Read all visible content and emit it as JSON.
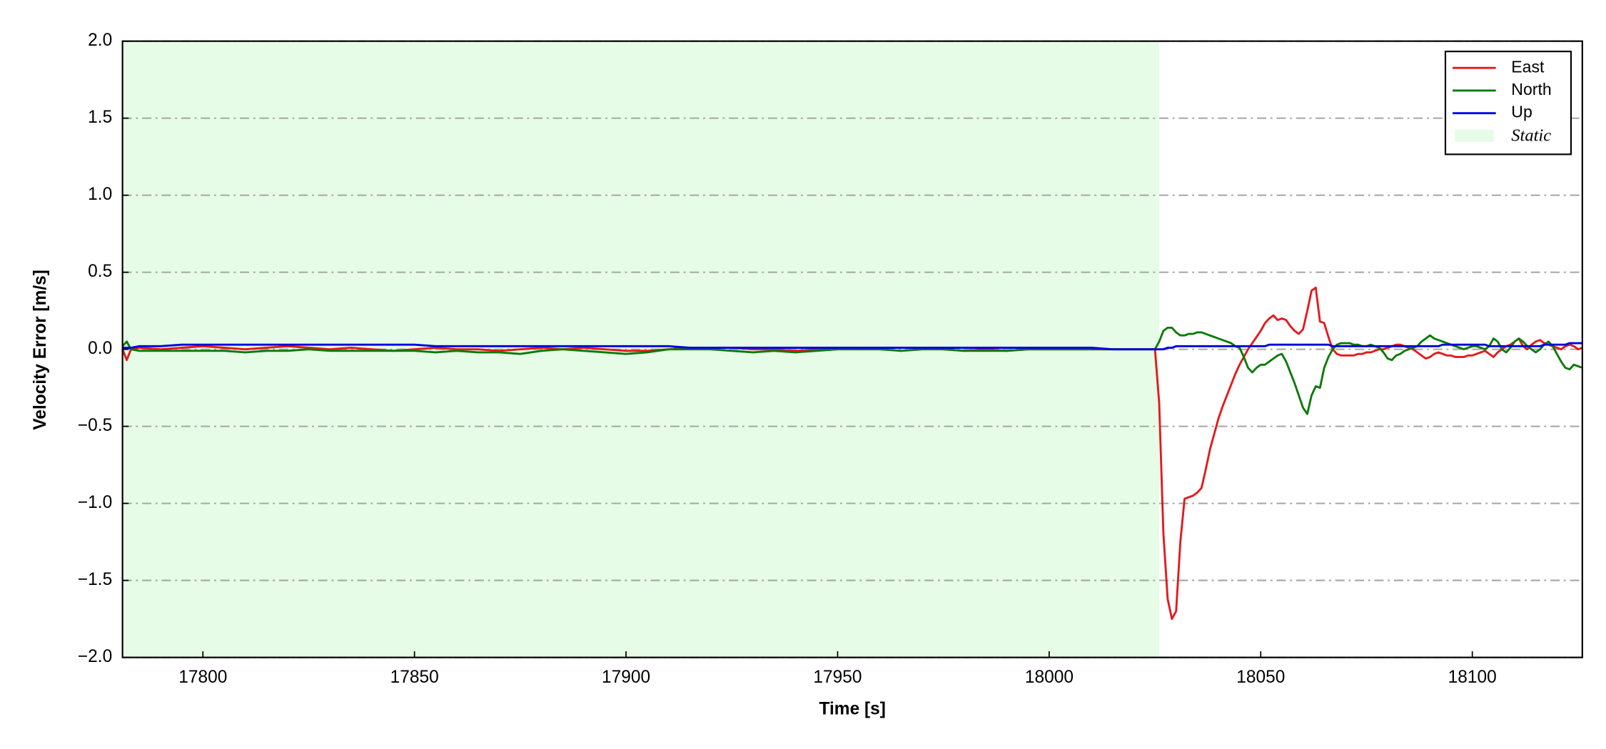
{
  "chart_data": {
    "type": "line",
    "xlabel": "Time [s]",
    "ylabel": "Velocity Error [m/s]",
    "xlim": [
      17781,
      18126
    ],
    "ylim": [
      -2.0,
      2.0
    ],
    "xticks": [
      17800,
      17850,
      17900,
      17950,
      18000,
      18050,
      18100
    ],
    "yticks": [
      {
        "value": -2.0,
        "label": "−2.0"
      },
      {
        "value": -1.5,
        "label": "−1.5"
      },
      {
        "value": -1.0,
        "label": "−1.0"
      },
      {
        "value": -0.5,
        "label": "−0.5"
      },
      {
        "value": 0,
        "label": "0.0"
      },
      0.5,
      {
        "value": 1.0,
        "label": "1.0"
      },
      1.5,
      {
        "value": 2.0,
        "label": "2.0"
      }
    ],
    "grid": true,
    "legend": "upper right",
    "shaded_regions": [
      {
        "name": "Static",
        "color": "#e6fce6",
        "x": [
          17781,
          18026
        ]
      }
    ],
    "x": [
      17781,
      17782,
      17783,
      17785,
      17790,
      17795,
      17800,
      17805,
      17810,
      17815,
      17820,
      17825,
      17830,
      17835,
      17840,
      17845,
      17850,
      17855,
      17860,
      17865,
      17870,
      17875,
      17880,
      17885,
      17890,
      17895,
      17900,
      17905,
      17910,
      17915,
      17920,
      17925,
      17930,
      17935,
      17940,
      17945,
      17950,
      17955,
      17960,
      17965,
      17970,
      17975,
      17980,
      17985,
      17990,
      17995,
      18000,
      18005,
      18010,
      18015,
      18020,
      18021,
      18022,
      18023,
      18024,
      18025,
      18026,
      18027,
      18028,
      18029,
      18030,
      18031,
      18032,
      18033,
      18034,
      18035,
      18036,
      18037,
      18038,
      18039,
      18040,
      18041,
      18042,
      18043,
      18044,
      18045,
      18046,
      18047,
      18048,
      18049,
      18050,
      18051,
      18052,
      18053,
      18054,
      18055,
      18056,
      18057,
      18058,
      18059,
      18060,
      18061,
      18062,
      18063,
      18064,
      18065,
      18066,
      18067,
      18068,
      18069,
      18070,
      18071,
      18072,
      18073,
      18074,
      18075,
      18076,
      18077,
      18078,
      18079,
      18080,
      18081,
      18082,
      18083,
      18084,
      18085,
      18086,
      18087,
      18088,
      18089,
      18090,
      18091,
      18092,
      18093,
      18094,
      18095,
      18096,
      18097,
      18098,
      18099,
      18100,
      18101,
      18102,
      18103,
      18104,
      18105,
      18106,
      18107,
      18108,
      18109,
      18110,
      18111,
      18112,
      18113,
      18114,
      18115,
      18116,
      18117,
      18118,
      18119,
      18120,
      18121,
      18122,
      18123,
      18124,
      18125,
      18126
    ],
    "series": [
      {
        "name": "East",
        "color": "#e31a1c",
        "values": [
          0,
          -0.07,
          0,
          0.01,
          0,
          0.01,
          0.02,
          0.01,
          0,
          0.01,
          0.02,
          0.01,
          0,
          0.01,
          0,
          -0.01,
          0,
          0.01,
          0,
          0,
          -0.01,
          0,
          0.01,
          0,
          0.01,
          0,
          -0.01,
          -0.01,
          0,
          0.01,
          0.01,
          0.01,
          0,
          0,
          -0.01,
          0,
          0.01,
          0,
          0.01,
          0.01,
          0.01,
          0,
          -0.01,
          0,
          -0.01,
          0,
          0,
          0,
          0,
          0,
          0,
          0,
          0,
          0,
          0,
          0,
          -0.35,
          -1.2,
          -1.62,
          -1.75,
          -1.7,
          -1.25,
          -0.97,
          -0.96,
          -0.95,
          -0.93,
          -0.9,
          -0.78,
          -0.65,
          -0.55,
          -0.45,
          -0.37,
          -0.3,
          -0.23,
          -0.16,
          -0.1,
          -0.05,
          0,
          0.04,
          0.08,
          0.12,
          0.17,
          0.2,
          0.22,
          0.19,
          0.2,
          0.19,
          0.15,
          0.12,
          0.1,
          0.13,
          0.25,
          0.38,
          0.4,
          0.18,
          0.17,
          0.08,
          0,
          -0.03,
          -0.04,
          -0.04,
          -0.04,
          -0.04,
          -0.03,
          -0.03,
          -0.02,
          -0.02,
          -0.01,
          0,
          0,
          0.01,
          0.02,
          0.03,
          0.03,
          0.02,
          0.01,
          0,
          -0.02,
          -0.04,
          -0.06,
          -0.05,
          -0.03,
          -0.02,
          -0.03,
          -0.04,
          -0.04,
          -0.05,
          -0.05,
          -0.05,
          -0.04,
          -0.04,
          -0.03,
          -0.02,
          -0.01,
          -0.03,
          -0.05,
          -0.02,
          0,
          0.02,
          0.03,
          0.05,
          0.07,
          0.02,
          0,
          0.03,
          0.05,
          0.06,
          0.04,
          0.03,
          0.02,
          0.01,
          0,
          0.02,
          0.03,
          0.02,
          0,
          0.01
        ]
      },
      {
        "name": "North",
        "color": "#0a7a0a",
        "values": [
          0.02,
          0.05,
          0,
          -0.01,
          -0.01,
          -0.01,
          -0.01,
          -0.01,
          -0.02,
          -0.01,
          -0.01,
          0,
          -0.01,
          -0.01,
          -0.01,
          -0.01,
          -0.01,
          -0.02,
          -0.01,
          -0.02,
          -0.02,
          -0.03,
          -0.01,
          0,
          -0.01,
          -0.02,
          -0.03,
          -0.02,
          0,
          0,
          0,
          -0.01,
          -0.02,
          -0.01,
          -0.02,
          -0.01,
          0,
          0,
          0,
          -0.01,
          0,
          0,
          -0.01,
          -0.01,
          -0.01,
          0,
          0,
          0,
          0,
          0,
          0,
          0,
          0,
          0,
          0,
          0,
          0.05,
          0.12,
          0.14,
          0.14,
          0.11,
          0.09,
          0.09,
          0.1,
          0.1,
          0.11,
          0.11,
          0.1,
          0.09,
          0.08,
          0.07,
          0.06,
          0.05,
          0.04,
          0.02,
          0.01,
          -0.05,
          -0.12,
          -0.15,
          -0.12,
          -0.1,
          -0.1,
          -0.08,
          -0.06,
          -0.04,
          -0.03,
          -0.08,
          -0.15,
          -0.22,
          -0.3,
          -0.38,
          -0.42,
          -0.3,
          -0.24,
          -0.25,
          -0.12,
          -0.05,
          0,
          0.03,
          0.04,
          0.04,
          0.04,
          0.03,
          0.03,
          0.02,
          0.02,
          0.03,
          0.02,
          0.01,
          -0.02,
          -0.06,
          -0.07,
          -0.04,
          -0.03,
          -0.01,
          0,
          0.01,
          0.02,
          0.05,
          0.07,
          0.09,
          0.07,
          0.06,
          0.05,
          0.04,
          0.03,
          0.02,
          0.01,
          0,
          0.01,
          0.02,
          0.02,
          0.01,
          0,
          0.02,
          0.07,
          0.05,
          0,
          -0.02,
          0.01,
          0.05,
          0.07,
          0.05,
          0.02,
          0,
          -0.02,
          0,
          0.03,
          0.05,
          0.02,
          -0.03,
          -0.08,
          -0.12,
          -0.13,
          -0.1,
          -0.11,
          -0.12
        ]
      },
      {
        "name": "Up",
        "color": "#0000e0",
        "values": [
          0.01,
          0.01,
          0.01,
          0.02,
          0.02,
          0.03,
          0.03,
          0.03,
          0.03,
          0.03,
          0.03,
          0.03,
          0.03,
          0.03,
          0.03,
          0.03,
          0.03,
          0.02,
          0.02,
          0.02,
          0.02,
          0.02,
          0.02,
          0.02,
          0.02,
          0.02,
          0.02,
          0.02,
          0.02,
          0.01,
          0.01,
          0.01,
          0.01,
          0.01,
          0.01,
          0.01,
          0.01,
          0.01,
          0.01,
          0.01,
          0.01,
          0.01,
          0.01,
          0.01,
          0.01,
          0.01,
          0.01,
          0.01,
          0.01,
          0,
          0,
          0,
          0,
          0,
          0,
          0,
          0,
          0,
          0.01,
          0.01,
          0.02,
          0.02,
          0.02,
          0.02,
          0.02,
          0.02,
          0.02,
          0.02,
          0.02,
          0.02,
          0.02,
          0.02,
          0.02,
          0.02,
          0.02,
          0.02,
          0.02,
          0.02,
          0.02,
          0.02,
          0.02,
          0.02,
          0.03,
          0.03,
          0.03,
          0.03,
          0.03,
          0.03,
          0.03,
          0.03,
          0.03,
          0.03,
          0.03,
          0.03,
          0.03,
          0.03,
          0.03,
          0.02,
          0.02,
          0.02,
          0.02,
          0.02,
          0.02,
          0.02,
          0.02,
          0.02,
          0.02,
          0.02,
          0.02,
          0.02,
          0.02,
          0.02,
          0.02,
          0.02,
          0.02,
          0.02,
          0.02,
          0.02,
          0.02,
          0.02,
          0.02,
          0.02,
          0.02,
          0.03,
          0.03,
          0.03,
          0.03,
          0.03,
          0.03,
          0.03,
          0.03,
          0.03,
          0.03,
          0.03,
          0.02,
          0.02,
          0.02,
          0.02,
          0.02,
          0.02,
          0.02,
          0.02,
          0.02,
          0.02,
          0.02,
          0.02,
          0.02,
          0.03,
          0.03,
          0.03,
          0.03,
          0.03,
          0.03,
          0.04,
          0.04,
          0.04,
          0.04
        ]
      }
    ]
  }
}
